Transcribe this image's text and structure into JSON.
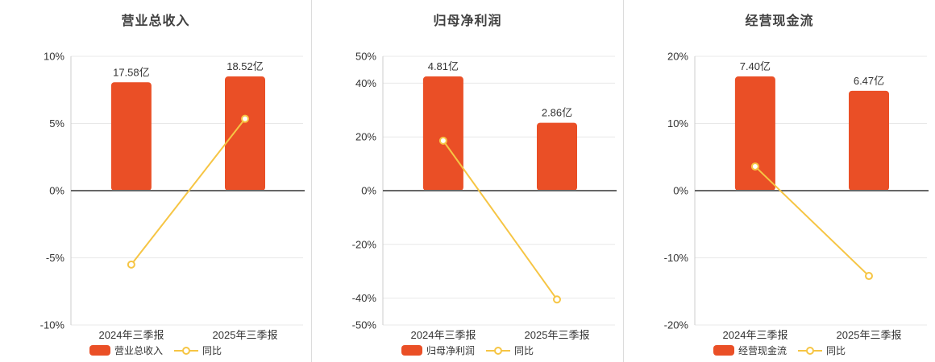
{
  "colors": {
    "bar": "#ea4f26",
    "line": "#f6c544",
    "marker_fill": "#ffffff",
    "gridline": "#e8e8e8",
    "zero_line": "#666666",
    "axis_line": "#cccccc",
    "axis_text": "#333333",
    "value_text": "#333333",
    "title_text": "#404040",
    "divider": "#dcdcdc",
    "background": "#ffffff"
  },
  "chart_data": [
    {
      "type": "bar-line",
      "title": "营业总收入",
      "categories": [
        "2024年三季报",
        "2025年三季报"
      ],
      "bar_series": {
        "name": "营业总收入",
        "unit": "亿",
        "values": [
          17.58,
          18.52
        ],
        "labels": [
          "17.58亿",
          "18.52亿"
        ]
      },
      "line_series": {
        "name": "同比",
        "unit": "%",
        "values": [
          -5.5,
          5.35
        ]
      },
      "ylim": [
        -10,
        10
      ],
      "y_ticks": [
        10,
        5,
        0,
        -5,
        -10
      ],
      "grid": true,
      "legend_position": "bottom"
    },
    {
      "type": "bar-line",
      "title": "归母净利润",
      "categories": [
        "2024年三季报",
        "2025年三季报"
      ],
      "bar_series": {
        "name": "归母净利润",
        "unit": "亿",
        "values": [
          4.81,
          2.86
        ],
        "labels": [
          "4.81亿",
          "2.86亿"
        ]
      },
      "line_series": {
        "name": "同比",
        "unit": "%",
        "values": [
          18.6,
          -40.5
        ]
      },
      "ylim": [
        -50,
        50
      ],
      "y_ticks": [
        50,
        40,
        20,
        0,
        -20,
        -40,
        -50
      ],
      "grid": true,
      "legend_position": "bottom"
    },
    {
      "type": "bar-line",
      "title": "经营现金流",
      "categories": [
        "2024年三季报",
        "2025年三季报"
      ],
      "bar_series": {
        "name": "经营现金流",
        "unit": "亿",
        "values": [
          7.4,
          6.47
        ],
        "labels": [
          "7.40亿",
          "6.47亿"
        ]
      },
      "line_series": {
        "name": "同比",
        "unit": "%",
        "values": [
          3.6,
          -12.7
        ]
      },
      "ylim": [
        -20,
        20
      ],
      "y_ticks": [
        20,
        10,
        0,
        -10,
        -20
      ],
      "grid": true,
      "legend_position": "bottom"
    }
  ]
}
